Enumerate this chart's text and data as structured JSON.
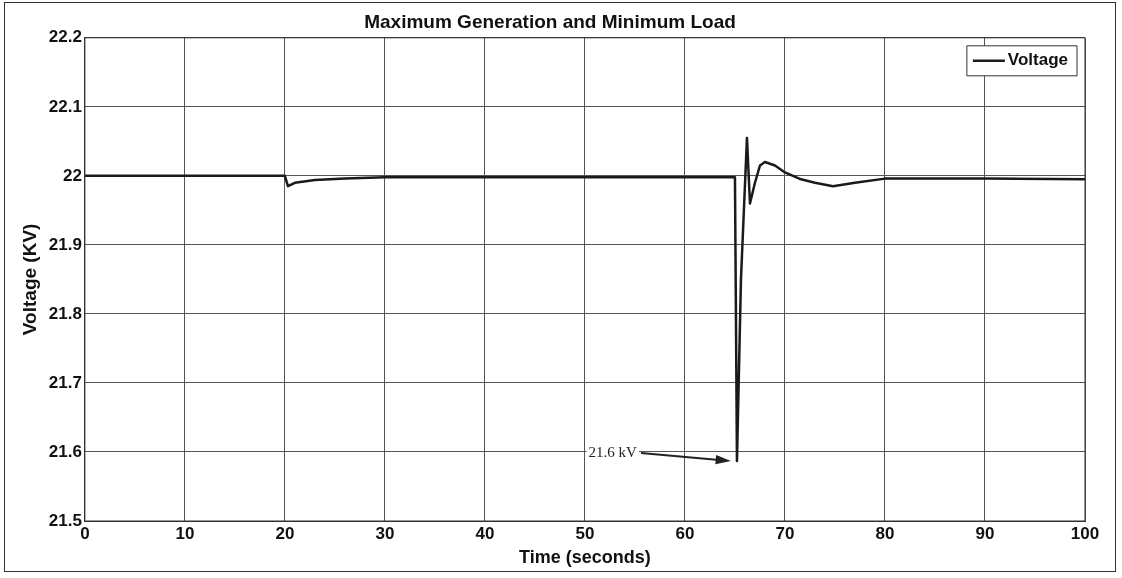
{
  "chart_data": {
    "type": "line",
    "title": "Maximum Generation and Minimum Load",
    "xlabel": "Time (seconds)",
    "ylabel": "Voltage (KV)",
    "xlim": [
      0,
      100
    ],
    "xticks": [
      0,
      10,
      20,
      30,
      40,
      50,
      60,
      70,
      80,
      90,
      100
    ],
    "ylim": [
      21.5,
      22.2
    ],
    "yticks": [
      21.5,
      21.6,
      21.7,
      21.8,
      21.9,
      22,
      22.1,
      22.2
    ],
    "grid": true,
    "legend": "top right",
    "marker": "none",
    "line_style": "solid",
    "series": [
      {
        "name": "Voltage",
        "color": "#1a1a1a",
        "x": [
          0,
          20,
          20.3,
          21,
          23,
          26,
          30,
          40,
          50,
          60,
          65,
          65.2,
          65.6,
          66.2,
          66.5,
          67,
          67.5,
          68,
          69,
          70,
          71.6,
          73,
          74.8,
          77,
          80,
          90,
          100
        ],
        "values": [
          22,
          22,
          21.985,
          21.99,
          21.994,
          21.996,
          21.998,
          21.998,
          21.998,
          21.998,
          21.998,
          21.587,
          21.85,
          22.055,
          21.96,
          21.99,
          22.015,
          22.02,
          22.015,
          22.005,
          21.995,
          21.99,
          21.985,
          21.99,
          21.996,
          21.996,
          21.995
        ]
      }
    ],
    "annotations": [
      "21.6 kV"
    ]
  }
}
